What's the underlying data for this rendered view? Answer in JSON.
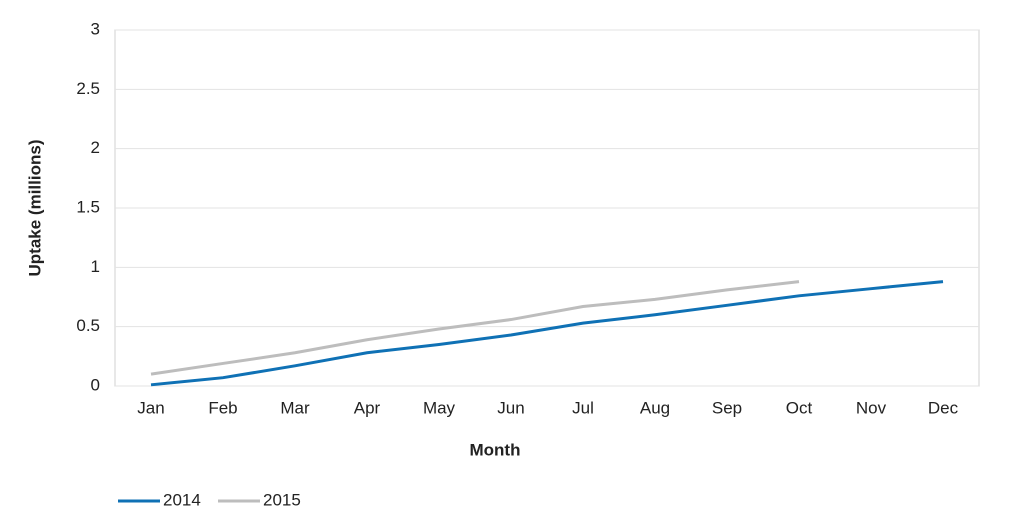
{
  "chart_data": {
    "type": "line",
    "x_label": "Month",
    "y_label": "Uptake (millions)",
    "categories": [
      "Jan",
      "Feb",
      "Mar",
      "Apr",
      "May",
      "Jun",
      "Jul",
      "Aug",
      "Sep",
      "Oct",
      "Nov",
      "Dec"
    ],
    "series": [
      {
        "name": "2014",
        "color": "#0f71b5",
        "values": [
          0.01,
          0.07,
          0.17,
          0.28,
          0.35,
          0.43,
          0.53,
          0.6,
          0.68,
          0.76,
          0.82,
          0.88
        ]
      },
      {
        "name": "2015",
        "color": "#bdbdbd",
        "values": [
          0.1,
          0.19,
          0.28,
          0.39,
          0.48,
          0.56,
          0.67,
          0.73,
          0.81,
          0.88,
          null,
          null
        ]
      }
    ],
    "ylim": [
      0,
      3
    ],
    "yticks": [
      0,
      0.5,
      1,
      1.5,
      2,
      2.5,
      3
    ],
    "grid": true,
    "legend": "bottom-left"
  }
}
